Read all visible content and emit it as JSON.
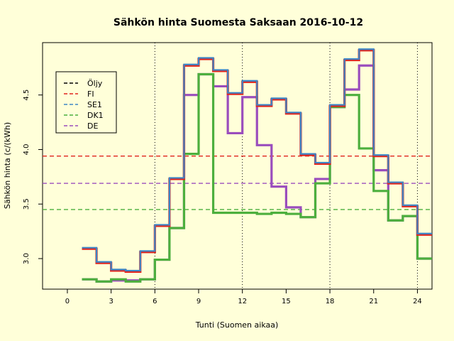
{
  "chart_data": {
    "type": "line",
    "title": "Sähkön hinta Suomesta Saksaan 2016-10-12",
    "xlabel": "Tunti (Suomen aikaa)",
    "ylabel": "Sähkön hinta (c/(kWh)",
    "xlim": [
      -1.7,
      25
    ],
    "ylim": [
      2.72,
      4.98
    ],
    "xticks": [
      0,
      3,
      6,
      9,
      12,
      15,
      18,
      21,
      24
    ],
    "yticks": [
      3.0,
      3.5,
      4.0,
      4.5
    ],
    "ytick_labels": [
      "3.0",
      "3.5",
      "4.0",
      "4.5"
    ],
    "vlines": [
      6,
      12,
      18,
      24
    ],
    "legend_position": "top-left",
    "x": [
      1,
      2,
      3,
      4,
      5,
      6,
      7,
      8,
      9,
      10,
      11,
      12,
      13,
      14,
      15,
      16,
      17,
      18,
      19,
      20,
      21,
      22,
      23,
      24
    ],
    "series": [
      {
        "name": "Öljy",
        "color": "#000000",
        "values": null
      },
      {
        "name": "FI",
        "color": "#e0251d",
        "average": 3.94,
        "values": [
          3.09,
          2.96,
          2.89,
          2.88,
          3.06,
          3.3,
          3.73,
          4.77,
          4.83,
          4.72,
          4.51,
          4.62,
          4.4,
          4.46,
          4.33,
          3.95,
          3.87,
          4.4,
          4.82,
          4.91,
          3.94,
          3.69,
          3.48,
          3.22
        ]
      },
      {
        "name": "SE1",
        "color": "#3d85c6",
        "values": [
          3.09,
          2.96,
          2.89,
          2.88,
          3.06,
          3.3,
          3.73,
          4.77,
          4.83,
          4.72,
          4.51,
          4.62,
          4.4,
          4.46,
          4.33,
          3.95,
          3.87,
          4.4,
          4.82,
          4.91,
          3.94,
          3.69,
          3.48,
          3.22
        ]
      },
      {
        "name": "DK1",
        "color": "#4caf3d",
        "average": 3.45,
        "values": [
          2.81,
          2.79,
          2.81,
          2.79,
          2.81,
          2.99,
          3.28,
          3.96,
          4.69,
          3.42,
          3.42,
          3.42,
          3.41,
          3.42,
          3.41,
          3.38,
          3.69,
          4.39,
          4.5,
          4.01,
          3.62,
          3.35,
          3.39,
          3.0
        ]
      },
      {
        "name": "DE",
        "color": "#9a4dbd",
        "average": 3.69,
        "values": [
          2.81,
          2.79,
          2.8,
          2.8,
          2.81,
          2.99,
          3.28,
          4.5,
          4.69,
          4.58,
          4.15,
          4.48,
          4.04,
          3.66,
          3.47,
          3.38,
          3.73,
          4.39,
          4.55,
          4.77,
          3.81,
          3.35,
          3.39,
          3.0
        ]
      }
    ]
  }
}
